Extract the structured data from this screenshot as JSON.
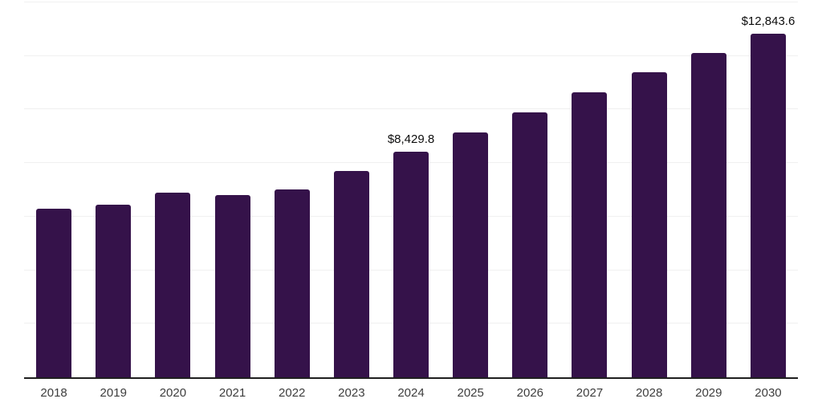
{
  "chart_data": {
    "type": "bar",
    "title": "",
    "xlabel": "",
    "ylabel": "",
    "categories": [
      "2018",
      "2019",
      "2020",
      "2021",
      "2022",
      "2023",
      "2024",
      "2025",
      "2026",
      "2027",
      "2028",
      "2029",
      "2030"
    ],
    "values": [
      6290,
      6440,
      6890,
      6800,
      7010,
      7690,
      8429.8,
      9150,
      9900,
      10640,
      11390,
      12110,
      12843.6
    ],
    "data_labels": {
      "2024": "$8,429.8",
      "2030": "$12,843.6"
    },
    "ylim": [
      0,
      14000
    ],
    "grid_step": 2000,
    "grid": true,
    "legend": false,
    "y_tick_labels_shown": false,
    "colors": {
      "bar": "#35124a",
      "axis_line": "#1f1f1f",
      "gridline": "#f0f0f0",
      "tick_label": "#3d3d3d",
      "data_label": "#0d0d0d",
      "background": "#ffffff"
    }
  }
}
